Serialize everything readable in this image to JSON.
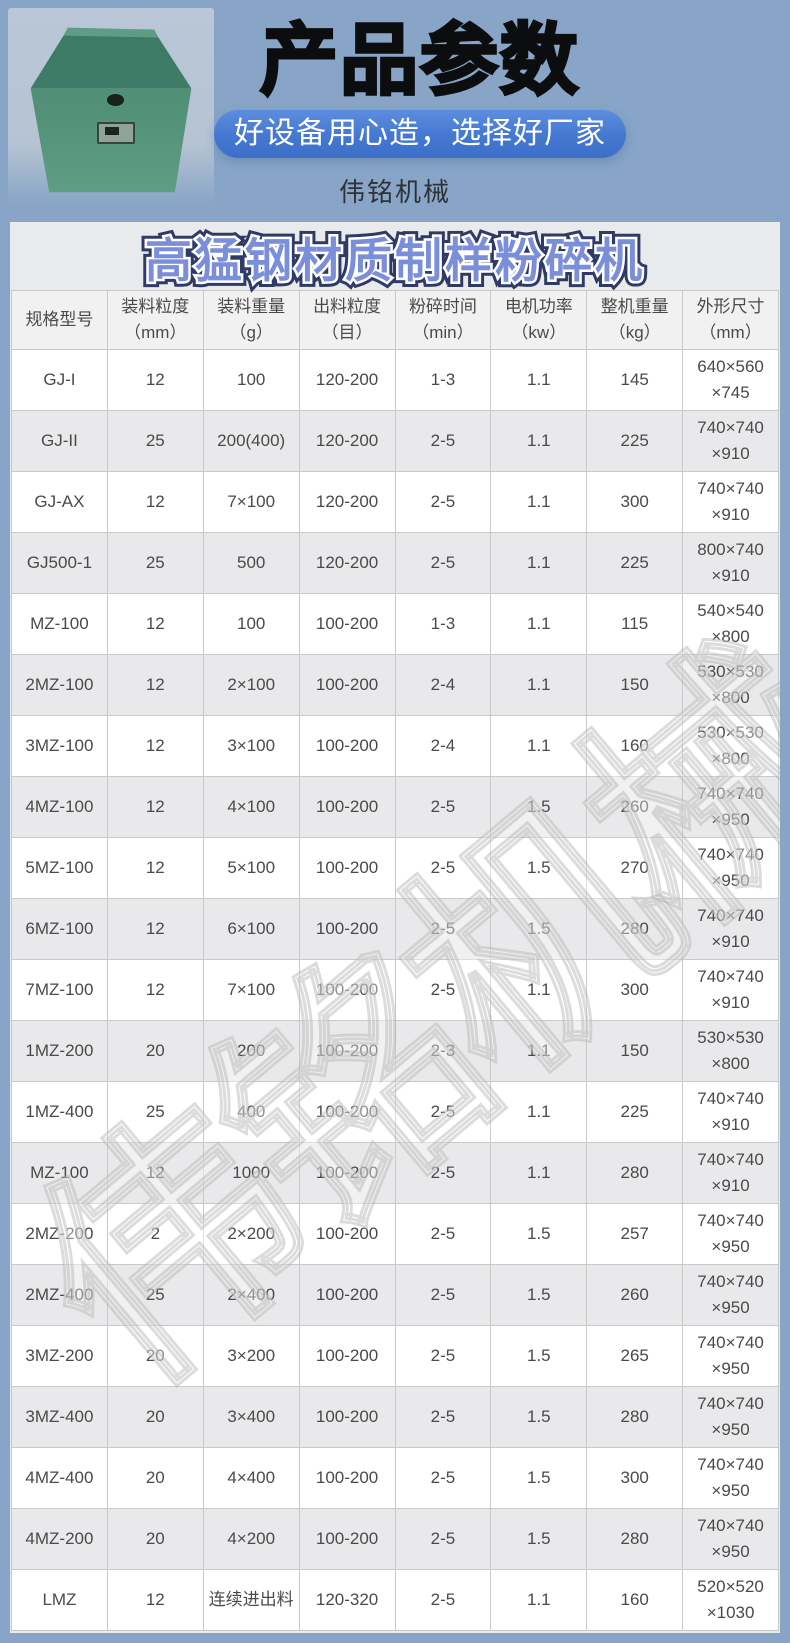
{
  "header": {
    "title": "产品参数",
    "tagline": "好设备用心造，选择好厂家",
    "brand": "伟铭机械",
    "pill_color": "#4478d1",
    "background_color": "#88a5c7"
  },
  "product_image": {
    "description": "green sample crusher machine photo",
    "machine_color": "#4b8a73"
  },
  "table": {
    "title": "高猛钢材质制样粉碎机",
    "title_color": "#7b8ed9",
    "watermark": "伟铭机械",
    "columns": [
      "规格型号",
      "装料粒度\n（mm）",
      "装料重量\n（g）",
      "出料粒度\n（目）",
      "粉碎时间\n（min）",
      "电机功率\n（kw）",
      "整机重量\n（kg）",
      "外形尺寸\n（mm）"
    ],
    "rows": [
      [
        "GJ-I",
        "12",
        "100",
        "120-200",
        "1-3",
        "1.1",
        "145",
        "640×560\n×745"
      ],
      [
        "GJ-II",
        "25",
        "200(400)",
        "120-200",
        "2-5",
        "1.1",
        "225",
        "740×740\n×910"
      ],
      [
        "GJ-AX",
        "12",
        "7×100",
        "120-200",
        "2-5",
        "1.1",
        "300",
        "740×740\n×910"
      ],
      [
        "GJ500-1",
        "25",
        "500",
        "120-200",
        "2-5",
        "1.1",
        "225",
        "800×740\n×910"
      ],
      [
        "MZ-100",
        "12",
        "100",
        "100-200",
        "1-3",
        "1.1",
        "115",
        "540×540\n×800"
      ],
      [
        "2MZ-100",
        "12",
        "2×100",
        "100-200",
        "2-4",
        "1.1",
        "150",
        "530×530\n×800"
      ],
      [
        "3MZ-100",
        "12",
        "3×100",
        "100-200",
        "2-4",
        "1.1",
        "160",
        "530×530\n×800"
      ],
      [
        "4MZ-100",
        "12",
        "4×100",
        "100-200",
        "2-5",
        "1.5",
        "260",
        "740×740\n×950"
      ],
      [
        "5MZ-100",
        "12",
        "5×100",
        "100-200",
        "2-5",
        "1.5",
        "270",
        "740×740\n×950"
      ],
      [
        "6MZ-100",
        "12",
        "6×100",
        "100-200",
        "2-5",
        "1.5",
        "280",
        "740×740\n×910"
      ],
      [
        "7MZ-100",
        "12",
        "7×100",
        "100-200",
        "2-5",
        "1.1",
        "300",
        "740×740\n×910"
      ],
      [
        "1MZ-200",
        "20",
        "200",
        "100-200",
        "2-3",
        "1.1",
        "150",
        "530×530\n×800"
      ],
      [
        "1MZ-400",
        "25",
        "400",
        "100-200",
        "2-5",
        "1.1",
        "225",
        "740×740\n×910"
      ],
      [
        "MZ-100",
        "12",
        "1000",
        "100-200",
        "2-5",
        "1.1",
        "280",
        "740×740\n×910"
      ],
      [
        "2MZ-200",
        "2",
        "2×200",
        "100-200",
        "2-5",
        "1.5",
        "257",
        "740×740\n×950"
      ],
      [
        "2MZ-400",
        "25",
        "2×400",
        "100-200",
        "2-5",
        "1.5",
        "260",
        "740×740\n×950"
      ],
      [
        "3MZ-200",
        "20",
        "3×200",
        "100-200",
        "2-5",
        "1.5",
        "265",
        "740×740\n×950"
      ],
      [
        "3MZ-400",
        "20",
        "3×400",
        "100-200",
        "2-5",
        "1.5",
        "280",
        "740×740\n×950"
      ],
      [
        "4MZ-400",
        "20",
        "4×400",
        "100-200",
        "2-5",
        "1.5",
        "300",
        "740×740\n×950"
      ],
      [
        "4MZ-200",
        "20",
        "4×200",
        "100-200",
        "2-5",
        "1.5",
        "280",
        "740×740\n×950"
      ],
      [
        "LMZ",
        "12",
        "连续进出料",
        "120-320",
        "2-5",
        "1.1",
        "160",
        "520×520\n×1030"
      ]
    ]
  }
}
